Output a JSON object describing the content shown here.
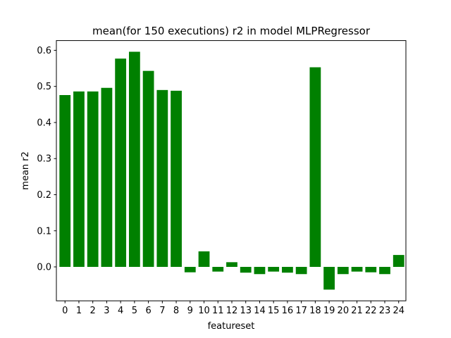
{
  "chart_data": {
    "type": "bar",
    "title": "mean(for 150 executions) r2 in model MLPRegressor",
    "xlabel": "featureset",
    "ylabel": "mean r2",
    "categories": [
      "0",
      "1",
      "2",
      "3",
      "4",
      "5",
      "6",
      "7",
      "8",
      "9",
      "10",
      "11",
      "12",
      "13",
      "14",
      "15",
      "16",
      "17",
      "18",
      "19",
      "20",
      "21",
      "22",
      "23",
      "24"
    ],
    "values": [
      0.476,
      0.486,
      0.486,
      0.496,
      0.577,
      0.596,
      0.543,
      0.49,
      0.488,
      -0.015,
      0.043,
      -0.013,
      0.013,
      -0.016,
      -0.02,
      -0.013,
      -0.016,
      -0.02,
      0.553,
      -0.063,
      -0.02,
      -0.013,
      -0.015,
      -0.02,
      0.033
    ],
    "yticks": [
      0.0,
      0.1,
      0.2,
      0.3,
      0.4,
      0.5,
      0.6
    ],
    "ytick_labels": [
      "0.0",
      "0.1",
      "0.2",
      "0.3",
      "0.4",
      "0.5",
      "0.6"
    ],
    "ylim": [
      -0.094,
      0.627
    ],
    "bar_color": "#008000",
    "grid": false
  }
}
